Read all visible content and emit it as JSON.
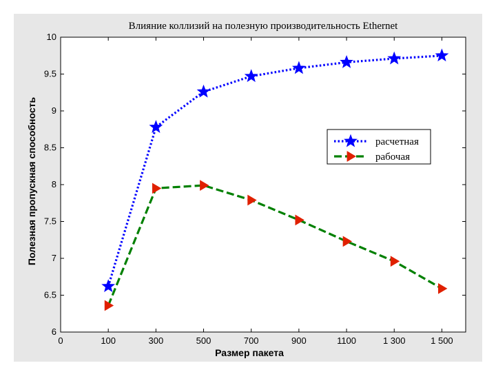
{
  "chart_data": {
    "type": "line",
    "title": "Влияние коллизий на полезную производительность Ethernet",
    "xlabel": "Размер пакета",
    "ylabel": "Полезная пропускная способность",
    "x_tick_labels": [
      "0",
      "100",
      "300",
      "500",
      "700",
      "900",
      "1100",
      "1 300",
      "1 500"
    ],
    "y_tick_labels": [
      "6",
      "6.5",
      "7",
      "7.5",
      "8",
      "8.5",
      "9",
      "9.5",
      "10"
    ],
    "ylim": [
      6,
      10
    ],
    "grid": false,
    "legend_position": "center-right",
    "series": [
      {
        "name": "расчетная",
        "color": "#0000ff",
        "line_style": "dotted",
        "marker": "star",
        "x": [
          100,
          300,
          500,
          700,
          900,
          1100,
          1300,
          1500
        ],
        "values": [
          6.62,
          8.78,
          9.26,
          9.47,
          9.58,
          9.66,
          9.71,
          9.75
        ]
      },
      {
        "name": "рабочая",
        "color": "#008000",
        "marker_color": "#e02000",
        "line_style": "dashed",
        "marker": "triangle-right",
        "x": [
          100,
          300,
          500,
          700,
          900,
          1100,
          1300,
          1500
        ],
        "values": [
          6.36,
          7.95,
          7.99,
          7.79,
          7.52,
          7.23,
          6.96,
          6.59
        ]
      }
    ]
  }
}
